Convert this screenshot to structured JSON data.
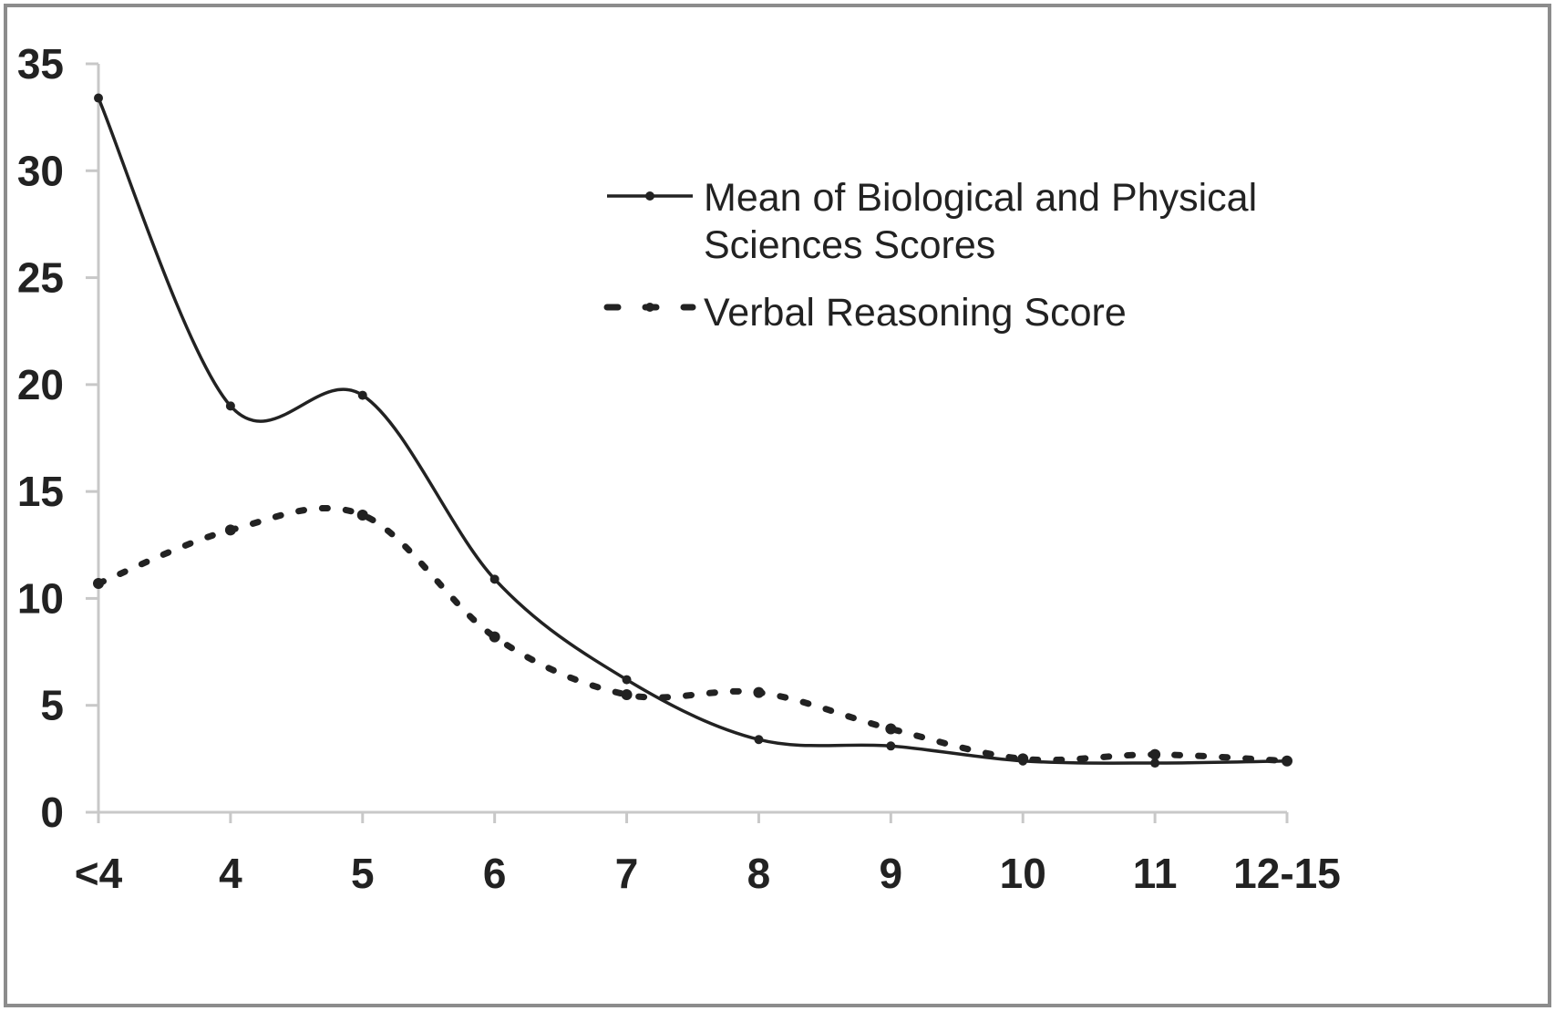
{
  "chart_data": {
    "type": "line",
    "categories": [
      "<4",
      "4",
      "5",
      "6",
      "7",
      "8",
      "9",
      "10",
      "11",
      "12-15"
    ],
    "ylim": [
      0,
      35
    ],
    "yticks": [
      0,
      5,
      10,
      15,
      20,
      25,
      30,
      35
    ],
    "ytick_labels": [
      "0",
      "5",
      "10",
      "15",
      "20",
      "25",
      "30",
      "35"
    ],
    "grid": false,
    "legend_position": "top-right",
    "title": "",
    "xlabel": "",
    "ylabel": "",
    "series": [
      {
        "name": "Mean of Biological and Physical Sciences Scores",
        "legend_lines": [
          "Mean of Biological and Physical",
          "Sciences Scores"
        ],
        "style": "solid",
        "color": "#222222",
        "values": [
          33.4,
          19.0,
          19.5,
          10.9,
          6.2,
          3.4,
          3.1,
          2.4,
          2.3,
          2.4
        ]
      },
      {
        "name": "Verbal Reasoning Score",
        "legend_lines": [
          "Verbal Reasoning Score"
        ],
        "style": "dotted",
        "color": "#222222",
        "values": [
          10.7,
          13.2,
          13.9,
          8.2,
          5.5,
          5.6,
          3.9,
          2.5,
          2.7,
          2.4
        ]
      }
    ]
  }
}
